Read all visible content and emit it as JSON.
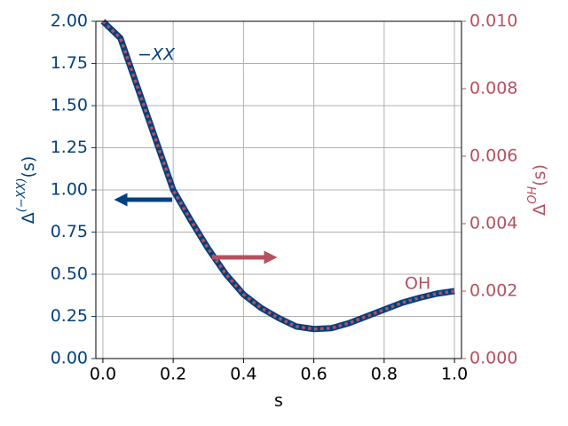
{
  "chart_data": {
    "type": "line",
    "x": [
      0,
      0.05,
      0.1,
      0.15,
      0.2,
      0.25,
      0.3,
      0.35,
      0.4,
      0.45,
      0.5,
      0.55,
      0.6,
      0.65,
      0.7,
      0.75,
      0.8,
      0.85,
      0.9,
      0.95,
      1.0
    ],
    "series": [
      {
        "name": "−XX",
        "color": "#00407f",
        "values": [
          2.0,
          1.9,
          1.6,
          1.3,
          1.0,
          0.82,
          0.65,
          0.5,
          0.38,
          0.3,
          0.24,
          0.19,
          0.175,
          0.18,
          0.21,
          0.25,
          0.29,
          0.33,
          0.36,
          0.385,
          0.4
        ]
      },
      {
        "name": "OH",
        "color": "#b5505f",
        "axis": "y2",
        "values": [
          0.01,
          0.0095,
          0.008,
          0.0065,
          0.005,
          0.0041,
          0.00325,
          0.0025,
          0.0019,
          0.0015,
          0.0012,
          0.00095,
          0.000875,
          0.0009,
          0.00105,
          0.00125,
          0.00145,
          0.00165,
          0.0018,
          0.001925,
          0.002
        ]
      }
    ],
    "xlabel": "s",
    "ylabel": {
      "base": "Δ",
      "sup": "(−XX)",
      "tail": "(s)"
    },
    "y2label": {
      "base": "Δ",
      "sup": "OH",
      "tail": "(s)"
    },
    "xlim": [
      -0.02,
      1.02
    ],
    "xticks": [
      {
        "value": 0,
        "label": "0.0"
      },
      {
        "value": 0.2,
        "label": "0.2"
      },
      {
        "value": 0.4,
        "label": "0.4"
      },
      {
        "value": 0.6,
        "label": "0.6"
      },
      {
        "value": 0.8,
        "label": "0.8"
      },
      {
        "value": 1.0,
        "label": "1.0"
      }
    ],
    "ylim": [
      0,
      2
    ],
    "yticks": [
      {
        "value": 0,
        "label": "0.00"
      },
      {
        "value": 0.25,
        "label": "0.25"
      },
      {
        "value": 0.5,
        "label": "0.50"
      },
      {
        "value": 0.75,
        "label": "0.75"
      },
      {
        "value": 1.0,
        "label": "1.00"
      },
      {
        "value": 1.25,
        "label": "1.25"
      },
      {
        "value": 1.5,
        "label": "1.50"
      },
      {
        "value": 1.75,
        "label": "1.75"
      },
      {
        "value": 2.0,
        "label": "2.00"
      }
    ],
    "y2lim": [
      0,
      0.01
    ],
    "y2ticks": [
      {
        "value": 0,
        "label": "0.000"
      },
      {
        "value": 0.002,
        "label": "0.002"
      },
      {
        "value": 0.004,
        "label": "0.004"
      },
      {
        "value": 0.006,
        "label": "0.006"
      },
      {
        "value": 0.008,
        "label": "0.008"
      },
      {
        "value": 0.01,
        "label": "0.010"
      }
    ],
    "grid": true
  }
}
